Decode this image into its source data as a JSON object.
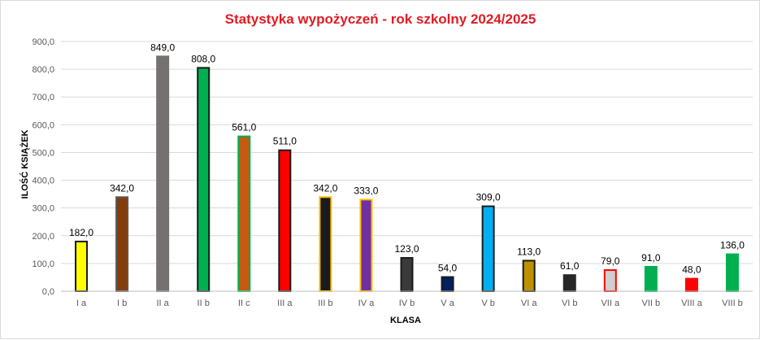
{
  "chart_data": {
    "type": "bar",
    "title": "Statystyka wypożyczeń - rok szkolny 2024/2025",
    "xlabel": "KLASA",
    "ylabel": "ILOŚĆ KSIĄŻEK",
    "ylim": [
      0,
      900
    ],
    "yticks": [
      "0,0",
      "100,0",
      "200,0",
      "300,0",
      "400,0",
      "500,0",
      "600,0",
      "700,0",
      "800,0",
      "900,0"
    ],
    "grid": true,
    "legend": "none",
    "categories": [
      "I a",
      "I b",
      "II a",
      "II b",
      "II c",
      "III a",
      "III b",
      "IV a",
      "IV b",
      "V a",
      "V b",
      "VI a",
      "VI b",
      "VII a",
      "VII b",
      "VIII a",
      "VIII b"
    ],
    "values": [
      182,
      342,
      849,
      808,
      561,
      511,
      342,
      333,
      123,
      54,
      309,
      113,
      61,
      79,
      91,
      48,
      136
    ],
    "value_labels": [
      "182,0",
      "342,0",
      "849,0",
      "808,0",
      "561,0",
      "511,0",
      "342,0",
      "333,0",
      "123,0",
      "54,0",
      "309,0",
      "113,0",
      "61,0",
      "79,0",
      "91,0",
      "48,0",
      "136,0"
    ],
    "bar_fill_colors": [
      "#ffff00",
      "#843c0c",
      "#767171",
      "#00b050",
      "#c55a11",
      "#ff0000",
      "#1a1a1a",
      "#7030a0",
      "#3a3a3a",
      "#002060",
      "#00b0f0",
      "#bf9000",
      "#262626",
      "#d0cece",
      "#00b050",
      "#ff0000",
      "#00b050"
    ],
    "bar_border_colors": [
      "#1a1a1a",
      "#595959",
      "#767171",
      "#1a1a1a",
      "#00b050",
      "#1a1a1a",
      "#ffc000",
      "#ffc000",
      "#1a1a1a",
      "#1a1a1a",
      "#1a1a1a",
      "#1a1a1a",
      "#262626",
      "#ff0000",
      "#00b050",
      "#ff0000",
      "#00b050"
    ]
  }
}
